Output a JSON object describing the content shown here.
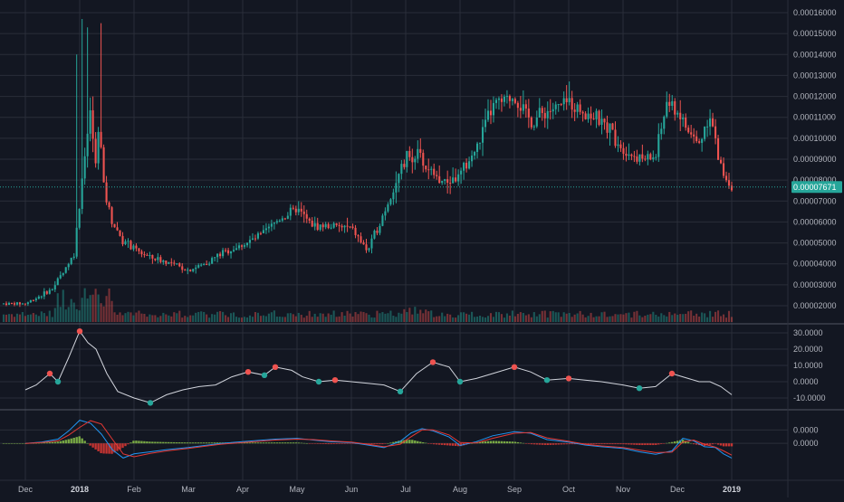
{
  "theme": {
    "background": "#131722",
    "grid": "#2a2e39",
    "text": "#b2b5be",
    "up": "#26a69a",
    "down": "#ef5350",
    "last_price_tag": "#26a69a",
    "osc_line": "#d1d4dc",
    "macd_line": "#2196f3",
    "signal_line": "#e53935",
    "hist_up": "#8bc34a",
    "hist_down": "#e53935"
  },
  "chart_data": [
    {
      "type": "candlestick",
      "panel": "price",
      "last_price": "0.00007671",
      "ylim": [
        1.28e-05,
        0.0001626
      ],
      "y_ticks": [
        "0.00016000",
        "0.00015000",
        "0.00014000",
        "0.00013000",
        "0.00012000",
        "0.00011000",
        "0.00010000",
        "0.00009000",
        "0.00008000",
        "0.00007000",
        "0.00006000",
        "0.00005000",
        "0.00004000",
        "0.00003000",
        "0.00002000"
      ],
      "x_ticks": [
        "Dec",
        "2018",
        "Feb",
        "Mar",
        "Apr",
        "May",
        "Jun",
        "Jul",
        "Aug",
        "Sep",
        "Oct",
        "Nov",
        "Dec",
        "2019"
      ],
      "close_path_x_month_index": [
        0,
        0.5,
        0.9,
        1.0,
        1.1,
        1.2,
        1.3,
        1.35,
        1.45,
        1.6,
        1.8,
        2.0,
        2.3,
        2.6,
        3.0,
        3.3,
        3.6,
        4.0,
        4.3,
        4.7,
        5.0,
        5.3,
        5.6,
        6.0,
        6.3,
        6.7,
        7.0,
        7.2,
        7.4,
        7.7,
        8.0,
        8.3,
        8.6,
        9.0,
        9.3,
        9.6,
        10.0,
        10.4,
        10.8,
        11.0,
        11.3,
        11.6,
        11.8,
        12.0,
        12.2,
        12.4,
        12.6,
        12.75,
        12.9,
        13.0
      ],
      "close_path_values": [
        2.1e-05,
        2.8e-05,
        4.5e-05,
        7e-05,
        9.5e-05,
        0.000112,
        8.5e-05,
        0.00011,
        7.5e-05,
        6e-05,
        5.1e-05,
        4.7e-05,
        4.3e-05,
        4.1e-05,
        3.7e-05,
        4e-05,
        4.5e-05,
        4.9e-05,
        5.3e-05,
        6.2e-05,
        6.6e-05,
        5.8e-05,
        5.8e-05,
        5.7e-05,
        4.6e-05,
        7.1e-05,
        9e-05,
        9.3e-05,
        8.5e-05,
        7.9e-05,
        8.2e-05,
        9.5e-05,
        0.000115,
        0.00012,
        0.000108,
        0.000113,
        0.000117,
        0.000111,
        0.000103,
        9.5e-05,
        9e-05,
        9.1e-05,
        0.000117,
        0.000113,
        0.000103,
        9.7e-05,
        0.000113,
        9e-05,
        8.1e-05,
        7.67e-05
      ],
      "spike_x_month_index": [
        0.95,
        1.05,
        1.15,
        1.25,
        1.4
      ],
      "spike_high_values": [
        0.00014,
        0.000157,
        0.000153,
        0.00012,
        0.000155
      ]
    },
    {
      "type": "line",
      "panel": "oscillator",
      "ylim": [
        -14,
        34
      ],
      "y_ticks": [
        "30.0000",
        "20.0000",
        "10.0000",
        "0.0000",
        "-10.0000"
      ],
      "x_month_index": [
        0.0,
        0.2,
        0.45,
        0.6,
        0.8,
        1.0,
        1.15,
        1.3,
        1.5,
        1.7,
        2.0,
        2.3,
        2.6,
        2.9,
        3.2,
        3.5,
        3.8,
        4.1,
        4.4,
        4.6,
        4.9,
        5.1,
        5.4,
        5.7,
        6.0,
        6.3,
        6.6,
        6.9,
        7.2,
        7.5,
        7.8,
        8.0,
        8.3,
        8.6,
        9.0,
        9.3,
        9.6,
        10.0,
        10.3,
        10.6,
        11.0,
        11.3,
        11.6,
        11.9,
        12.1,
        12.4,
        12.6,
        12.8,
        13.0
      ],
      "values": [
        -5,
        -2,
        5,
        0,
        15,
        31,
        24,
        20,
        5,
        -6,
        -10,
        -13,
        -8,
        -5,
        -3,
        -2,
        3,
        6,
        4,
        9,
        7,
        3,
        0,
        1,
        0,
        -1,
        -2,
        -6,
        5,
        12,
        9,
        0,
        2,
        5,
        9,
        6,
        1,
        2,
        1,
        0,
        -2,
        -4,
        -3,
        5,
        3,
        0,
        0,
        -3,
        -8
      ]
    },
    {
      "type": "macd",
      "panel": "macd",
      "ylim": [
        -7.5e-06,
        6.5e-06
      ],
      "y_ticks": [
        "0.0000",
        "0.0000"
      ],
      "x_month_index": [
        0.0,
        0.3,
        0.6,
        0.8,
        1.0,
        1.2,
        1.4,
        1.6,
        1.8,
        2.0,
        2.3,
        2.6,
        3.0,
        3.3,
        3.6,
        4.0,
        4.3,
        4.6,
        5.0,
        5.3,
        5.6,
        6.0,
        6.3,
        6.6,
        6.9,
        7.1,
        7.3,
        7.5,
        7.8,
        8.0,
        8.3,
        8.6,
        9.0,
        9.3,
        9.6,
        10.0,
        10.3,
        10.6,
        11.0,
        11.3,
        11.6,
        11.9,
        12.1,
        12.3,
        12.5,
        12.7,
        12.85,
        13.0
      ],
      "macd": [
        0.0,
        3e-07,
        1e-06,
        3e-06,
        5.5e-06,
        4.8e-06,
        2.2e-06,
        -1.5e-06,
        -3.5e-06,
        -2.5e-06,
        -2e-06,
        -1.5e-06,
        -1e-06,
        -5e-07,
        0.0,
        4e-07,
        7e-07,
        1e-06,
        1.2e-06,
        8e-07,
        4e-07,
        2e-07,
        -4e-07,
        -1e-06,
        5e-07,
        2.5e-06,
        3.5e-06,
        3e-06,
        1.5e-06,
        -5e-07,
        4e-07,
        1.8e-06,
        2.8e-06,
        2.4e-06,
        9e-07,
        3e-07,
        -4e-07,
        -8e-07,
        -1.2e-06,
        -2e-06,
        -2.6e-06,
        -1.8e-06,
        1.2e-06,
        6e-07,
        -8e-07,
        -1e-06,
        -2.5e-06,
        -3.5e-06
      ],
      "signal": [
        0.0,
        2e-07,
        6e-07,
        2e-06,
        3.8e-06,
        5.4e-06,
        4.6e-06,
        1e-06,
        -2.5e-06,
        -3.2e-06,
        -2.4e-06,
        -1.8e-06,
        -1.2e-06,
        -7e-07,
        -2e-07,
        2e-07,
        5e-07,
        8e-07,
        1e-06,
        9e-07,
        6e-07,
        3e-07,
        -2e-07,
        -8e-07,
        -2e-07,
        1.6e-06,
        3.2e-06,
        3.2e-06,
        2e-06,
        2e-07,
        1e-07,
        1.2e-06,
        2.4e-06,
        2.6e-06,
        1.3e-06,
        5e-07,
        -2e-07,
        -6e-07,
        -1e-06,
        -1.6e-06,
        -2.2e-06,
        -2.1e-06,
        3e-07,
        8e-07,
        -2e-07,
        -9e-07,
        -1.8e-06,
        -2.8e-06
      ]
    }
  ]
}
